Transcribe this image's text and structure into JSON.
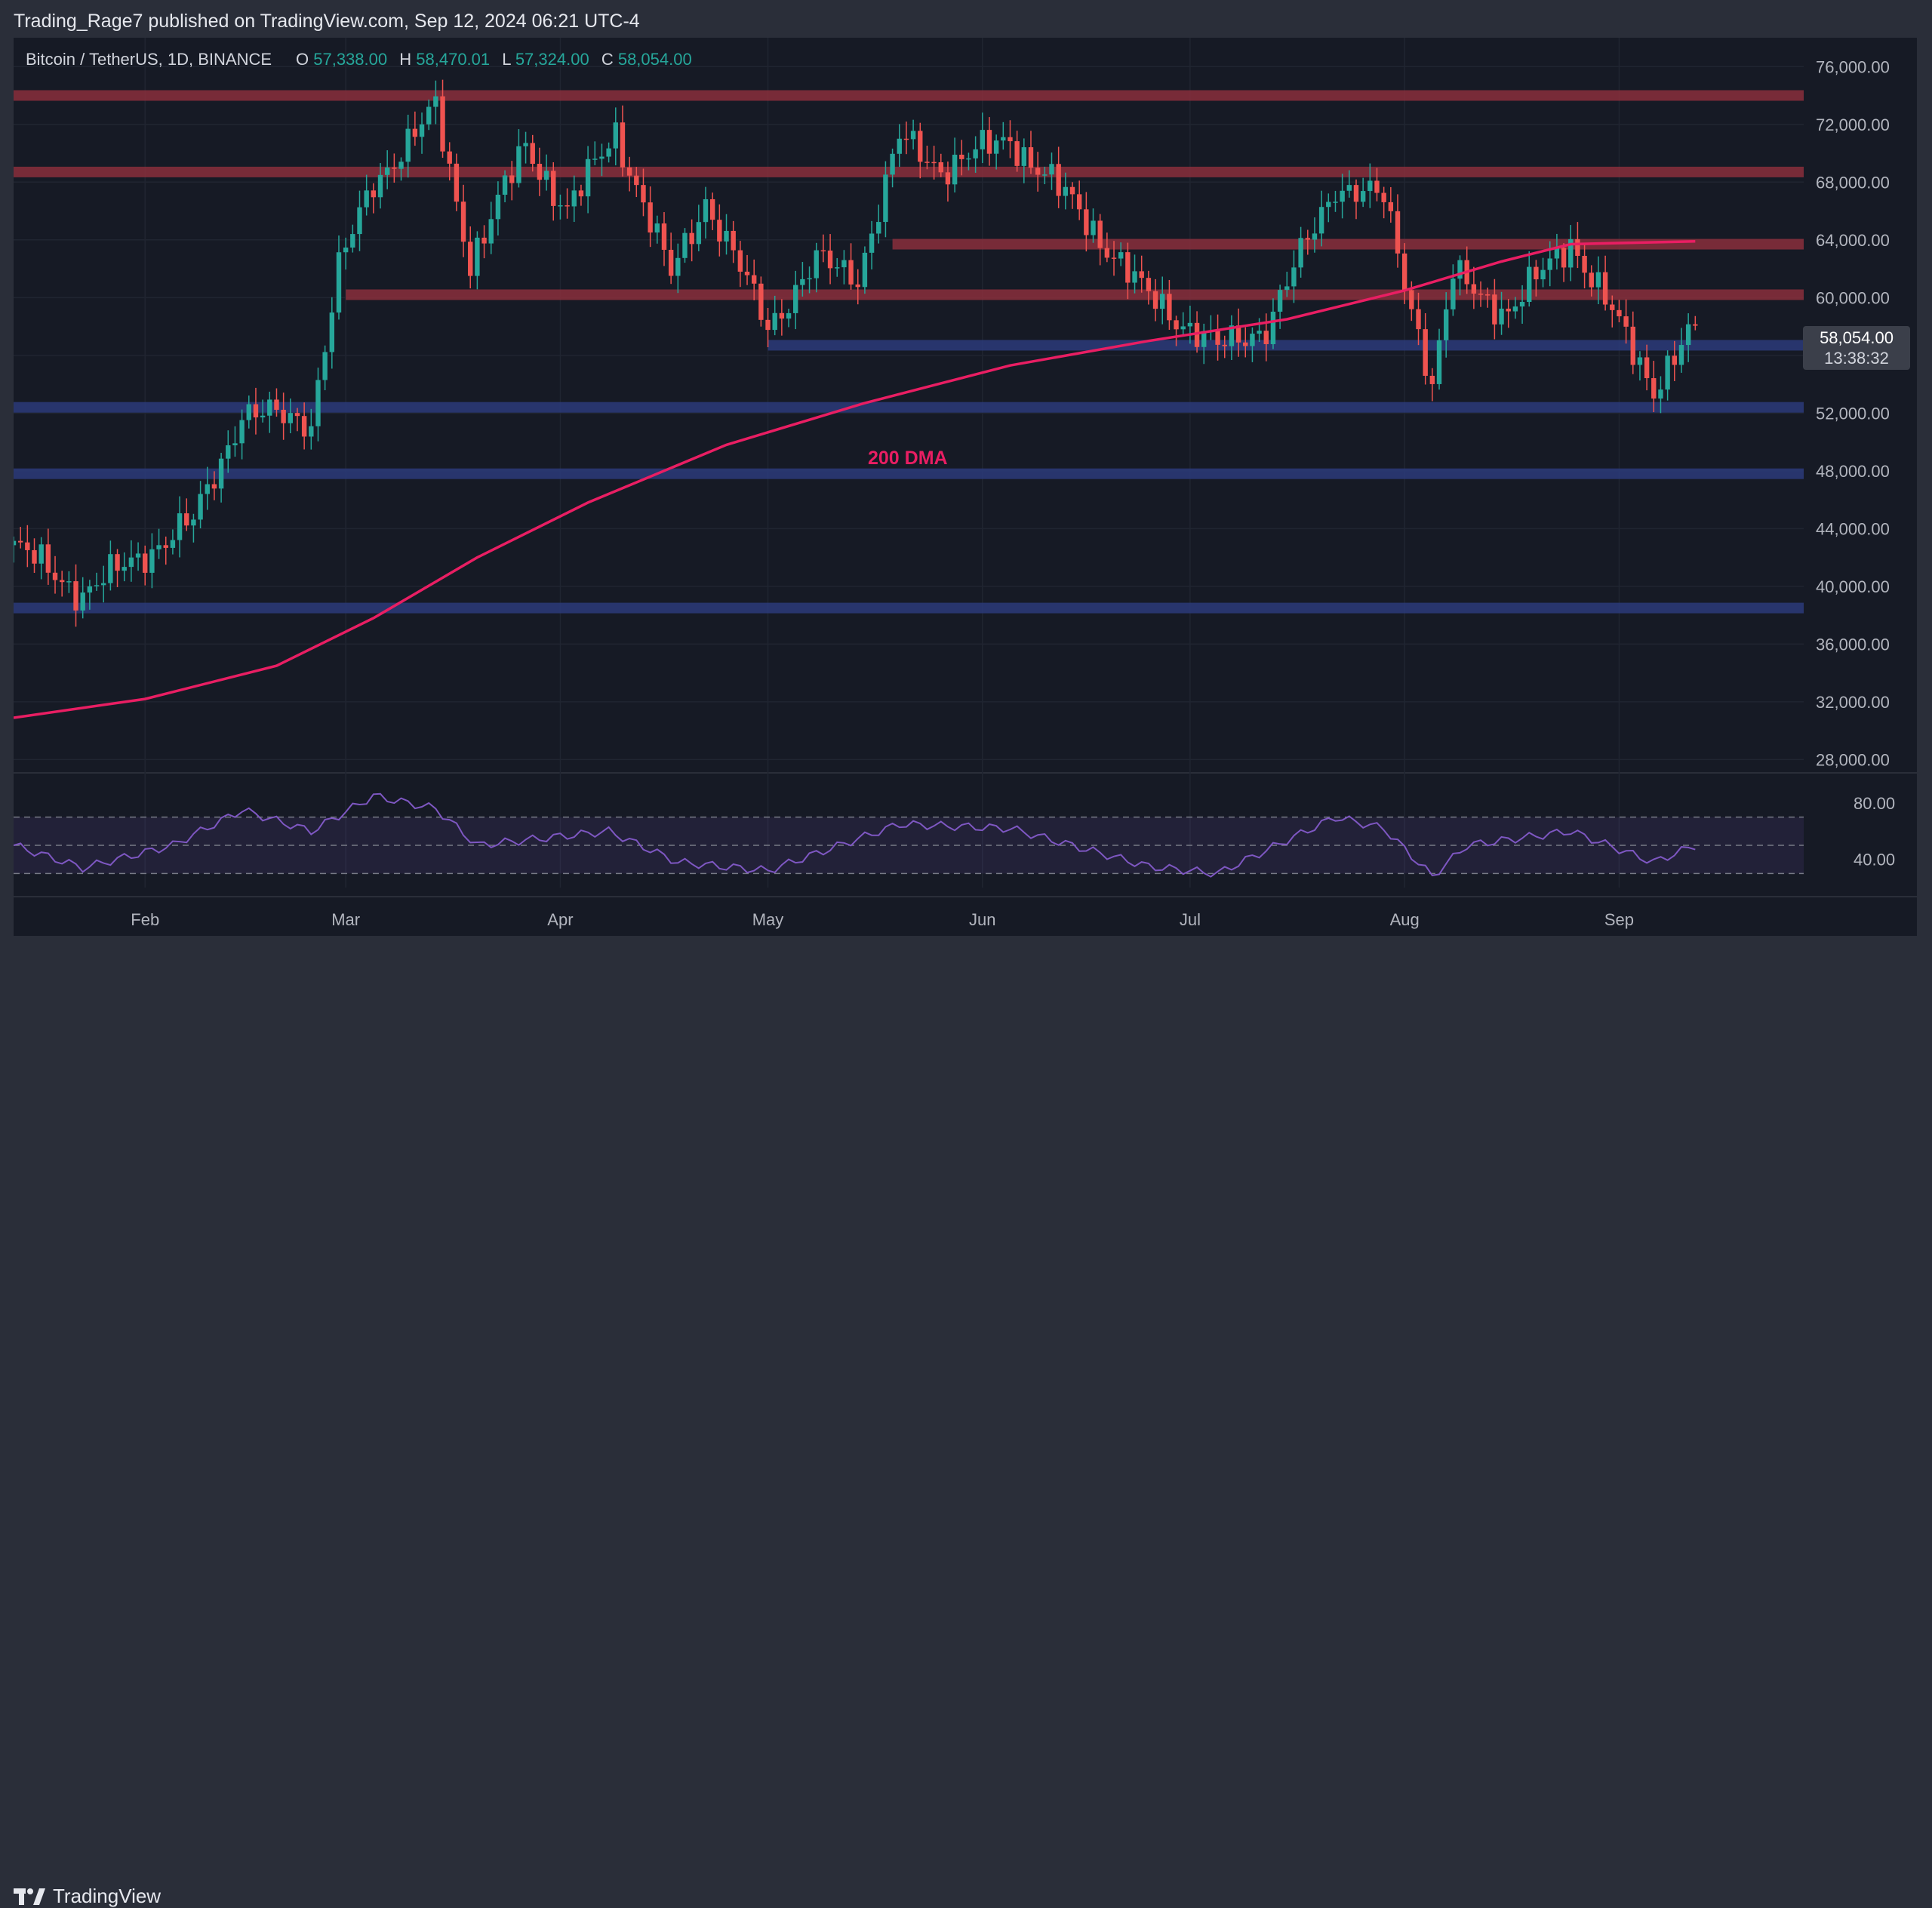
{
  "header": {
    "published_text": "Trading_Rage7 published on TradingView.com, Sep 12, 2024 06:21 UTC-4"
  },
  "legend": {
    "symbol": "Bitcoin / TetherUS, 1D, BINANCE",
    "o_label": "O",
    "o_value": "57,338.00",
    "h_label": "H",
    "h_value": "58,470.01",
    "l_label": "L",
    "l_value": "57,324.00",
    "c_label": "C",
    "c_value": "58,054.00"
  },
  "price_tag": {
    "price": "58,054.00",
    "countdown": "13:38:32"
  },
  "ma_label": "200 DMA",
  "footer": {
    "brand": "TradingView",
    "logo_icon": "tradingview-logo-icon"
  },
  "colors": {
    "up": "#26a69a",
    "down": "#ef5350",
    "ma": "#e91e63",
    "rsi": "#7e57c2",
    "resistance": "#8a2f3c",
    "support": "#2b3b7a"
  },
  "chart_data": [
    {
      "type": "candlestick",
      "name": "Bitcoin / TetherUS, 1D, BINANCE",
      "x_start": "2024-01-13",
      "x_tick_labels": [
        {
          "date": "2024-02-01",
          "label": "Feb"
        },
        {
          "date": "2024-03-01",
          "label": "Mar"
        },
        {
          "date": "2024-04-01",
          "label": "Apr"
        },
        {
          "date": "2024-05-01",
          "label": "May"
        },
        {
          "date": "2024-06-01",
          "label": "Jun"
        },
        {
          "date": "2024-07-01",
          "label": "Jul"
        },
        {
          "date": "2024-08-01",
          "label": "Aug"
        },
        {
          "date": "2024-09-01",
          "label": "Sep"
        }
      ],
      "y_ticks": [
        28000,
        32000,
        36000,
        40000,
        44000,
        48000,
        52000,
        56000,
        60000,
        64000,
        68000,
        72000,
        76000
      ],
      "y_tick_labels": [
        "28,000.00",
        "32,000.00",
        "36,000.00",
        "40,000.00",
        "44,000.00",
        "48,000.00",
        "52,000.00",
        "56,000.00",
        "60,000.00",
        "64,000.00",
        "68,000.00",
        "72,000.00",
        "76,000.00"
      ],
      "ylim": [
        27500,
        78000
      ],
      "scale": "linear",
      "grid": true,
      "last_price": 58054,
      "ohlc_key_points": [
        {
          "date": "2024-01-13",
          "close": 42800
        },
        {
          "date": "2024-01-23",
          "close": 39500
        },
        {
          "date": "2024-02-08",
          "close": 44500
        },
        {
          "date": "2024-02-15",
          "close": 52000
        },
        {
          "date": "2024-02-25",
          "close": 51500
        },
        {
          "date": "2024-02-29",
          "close": 62000
        },
        {
          "date": "2024-03-05",
          "close": 68000
        },
        {
          "date": "2024-03-14",
          "close": 73000
        },
        {
          "date": "2024-03-19",
          "close": 62500
        },
        {
          "date": "2024-03-27",
          "close": 70500
        },
        {
          "date": "2024-04-02",
          "close": 66000
        },
        {
          "date": "2024-04-09",
          "close": 71500
        },
        {
          "date": "2024-04-17",
          "close": 61500
        },
        {
          "date": "2024-04-22",
          "close": 66800
        },
        {
          "date": "2024-05-01",
          "close": 58000
        },
        {
          "date": "2024-05-08",
          "close": 62500
        },
        {
          "date": "2024-05-14",
          "close": 61500
        },
        {
          "date": "2024-05-20",
          "close": 71000
        },
        {
          "date": "2024-05-26",
          "close": 69000
        },
        {
          "date": "2024-06-05",
          "close": 71000
        },
        {
          "date": "2024-06-15",
          "close": 66000
        },
        {
          "date": "2024-06-24",
          "close": 60500
        },
        {
          "date": "2024-07-05",
          "close": 56500
        },
        {
          "date": "2024-07-12",
          "close": 58000
        },
        {
          "date": "2024-07-22",
          "close": 67800
        },
        {
          "date": "2024-07-29",
          "close": 66800
        },
        {
          "date": "2024-08-05",
          "close": 54000
        },
        {
          "date": "2024-08-08",
          "close": 61500
        },
        {
          "date": "2024-08-16",
          "close": 59000
        },
        {
          "date": "2024-08-25",
          "close": 64000
        },
        {
          "date": "2024-09-01",
          "close": 58000
        },
        {
          "date": "2024-09-06",
          "close": 53800
        },
        {
          "date": "2024-09-12",
          "close": 58054
        }
      ],
      "moving_average": {
        "label": "200 DMA",
        "points": [
          {
            "date": "2024-01-13",
            "value": 30900
          },
          {
            "date": "2024-02-01",
            "value": 32200
          },
          {
            "date": "2024-02-20",
            "value": 34500
          },
          {
            "date": "2024-03-05",
            "value": 37800
          },
          {
            "date": "2024-03-20",
            "value": 42000
          },
          {
            "date": "2024-04-05",
            "value": 45800
          },
          {
            "date": "2024-04-25",
            "value": 49800
          },
          {
            "date": "2024-05-15",
            "value": 52700
          },
          {
            "date": "2024-06-05",
            "value": 55300
          },
          {
            "date": "2024-06-25",
            "value": 57000
          },
          {
            "date": "2024-07-15",
            "value": 58500
          },
          {
            "date": "2024-08-01",
            "value": 60500
          },
          {
            "date": "2024-08-15",
            "value": 62500
          },
          {
            "date": "2024-08-25",
            "value": 63700
          },
          {
            "date": "2024-09-12",
            "value": 63900
          }
        ]
      },
      "horizontal_levels": [
        {
          "kind": "resistance",
          "value": 74000,
          "from": "2024-01-13"
        },
        {
          "kind": "resistance",
          "value": 68700,
          "from": "2024-01-13"
        },
        {
          "kind": "resistance",
          "value": 63700,
          "from": "2024-05-19"
        },
        {
          "kind": "resistance",
          "value": 60200,
          "from": "2024-03-01"
        },
        {
          "kind": "support",
          "value": 56700,
          "from": "2024-05-01"
        },
        {
          "kind": "support",
          "value": 52400,
          "from": "2024-01-13"
        },
        {
          "kind": "support",
          "value": 47800,
          "from": "2024-01-13"
        },
        {
          "kind": "support",
          "value": 38500,
          "from": "2024-01-13"
        }
      ]
    },
    {
      "type": "line",
      "name": "RSI",
      "y_tick_labels": [
        "80.00",
        "40.00"
      ],
      "y_ticks": [
        80,
        40
      ],
      "ylim": [
        20,
        95
      ],
      "bands": [
        70,
        50,
        30
      ],
      "points": [
        {
          "date": "2024-01-13",
          "value": 50
        },
        {
          "date": "2024-01-23",
          "value": 34
        },
        {
          "date": "2024-02-05",
          "value": 50
        },
        {
          "date": "2024-02-15",
          "value": 75
        },
        {
          "date": "2024-02-25",
          "value": 60
        },
        {
          "date": "2024-03-05",
          "value": 85
        },
        {
          "date": "2024-03-14",
          "value": 76
        },
        {
          "date": "2024-03-20",
          "value": 50
        },
        {
          "date": "2024-04-08",
          "value": 60
        },
        {
          "date": "2024-04-18",
          "value": 38
        },
        {
          "date": "2024-05-01",
          "value": 32
        },
        {
          "date": "2024-05-20",
          "value": 65
        },
        {
          "date": "2024-06-05",
          "value": 62
        },
        {
          "date": "2024-06-25",
          "value": 35
        },
        {
          "date": "2024-07-05",
          "value": 30
        },
        {
          "date": "2024-07-22",
          "value": 70
        },
        {
          "date": "2024-07-29",
          "value": 62
        },
        {
          "date": "2024-08-05",
          "value": 28
        },
        {
          "date": "2024-08-10",
          "value": 50
        },
        {
          "date": "2024-08-25",
          "value": 60
        },
        {
          "date": "2024-09-06",
          "value": 38
        },
        {
          "date": "2024-09-12",
          "value": 50
        }
      ]
    }
  ]
}
